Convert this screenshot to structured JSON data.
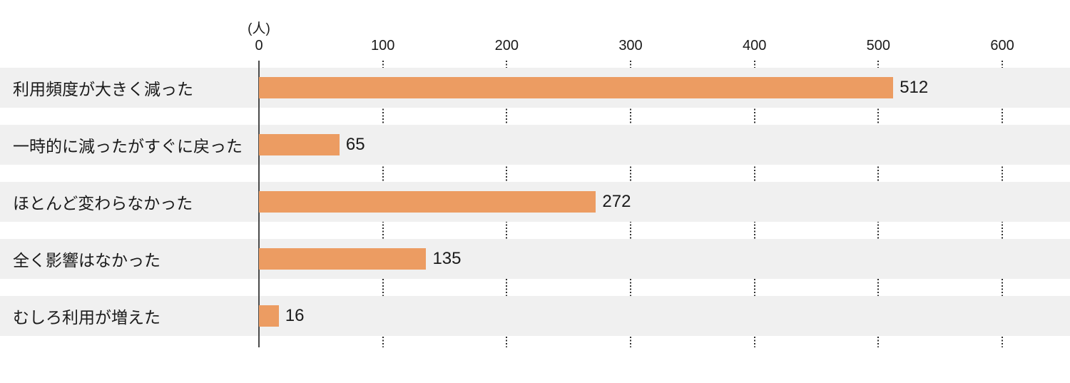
{
  "page": {
    "background": "#ffffff"
  },
  "chart_data": {
    "type": "bar",
    "orientation": "horizontal",
    "title": "",
    "unit_label": "(人)",
    "categories": [
      "利用頻度が大きく減った",
      "一時的に減ったがすぐに戻った",
      "ほとんど変わらなかった",
      "全く影響はなかった",
      "むしろ利用が増えた"
    ],
    "values": [
      512,
      65,
      272,
      135,
      16
    ],
    "x_ticks": [
      0,
      100,
      200,
      300,
      400,
      500,
      600
    ],
    "xlim": [
      0,
      600
    ],
    "xlabel": "(人)",
    "ylabel": "",
    "grid": "dotted-vertical",
    "legend": "none",
    "value_labels_shown": true,
    "colors": {
      "bar": "#EC9C62",
      "row_band": "#F0F0F0",
      "axis_line": "#4A4A4A",
      "gridline": "#2E2E2E",
      "text": "#1A1A1A"
    }
  }
}
